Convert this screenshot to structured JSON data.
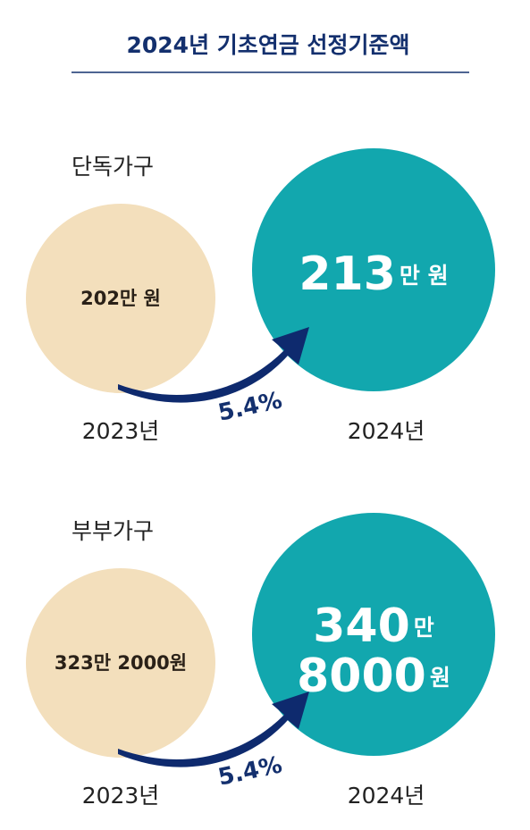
{
  "header": {
    "title": "2024년 기초연금 선정기준액"
  },
  "sections": [
    {
      "label": "단독가구",
      "before": {
        "amount": "202만 원",
        "year": "2023년"
      },
      "after": {
        "lines": [
          {
            "number": "213",
            "unit": "만 원"
          }
        ],
        "year": "2024년"
      },
      "growth": "5.4%"
    },
    {
      "label": "부부가구",
      "before": {
        "amount": "323만 2000원",
        "year": "2023년"
      },
      "after": {
        "lines": [
          {
            "number": "340",
            "unit": "만"
          },
          {
            "number": "8000",
            "unit": "원"
          }
        ],
        "year": "2024년"
      },
      "growth": "5.4%"
    }
  ]
}
